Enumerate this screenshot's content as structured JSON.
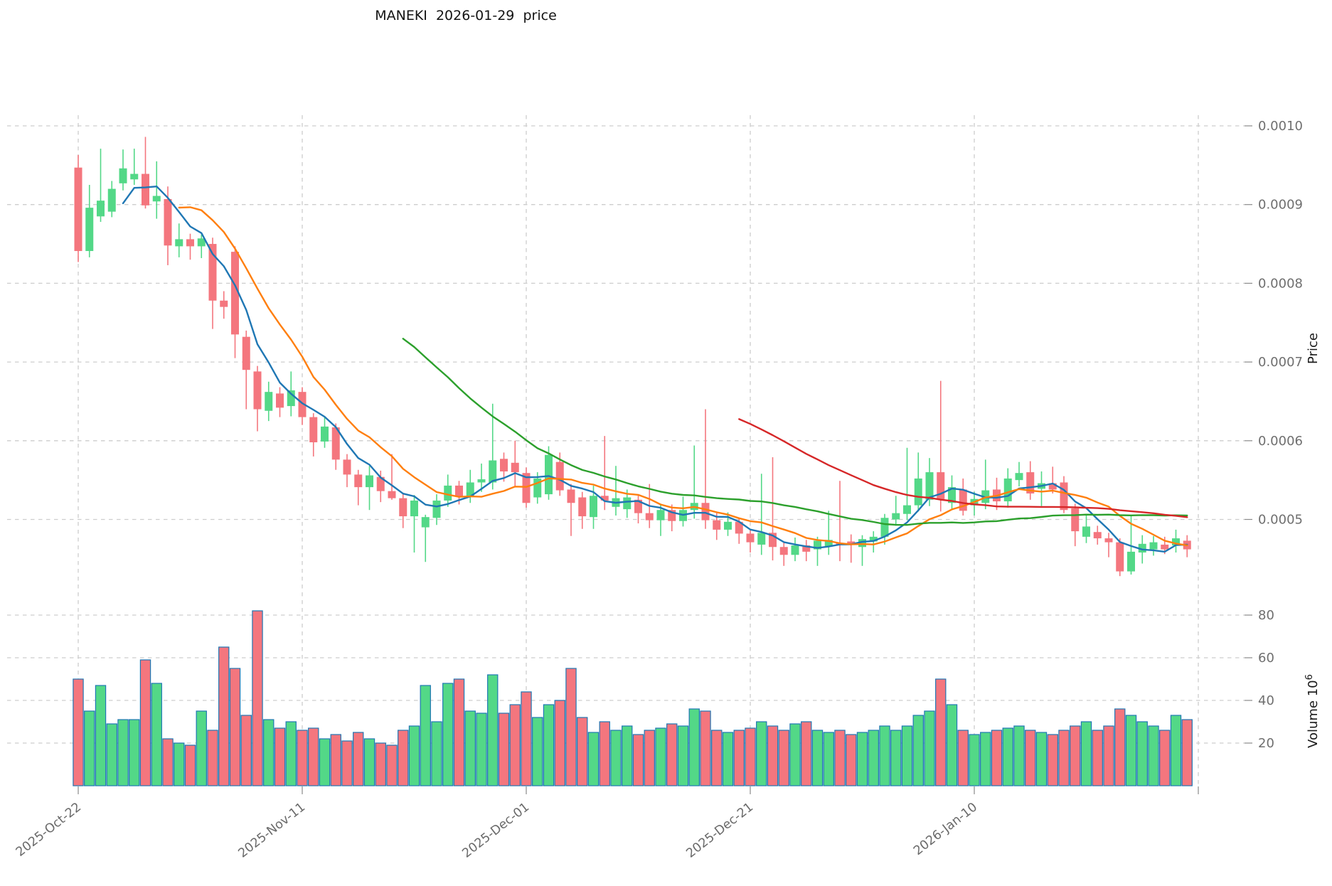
{
  "chart_data": {
    "type": "candlestick",
    "title": "MANEKI  2026-01-29  price",
    "ylabel": "Price",
    "volume_label": "Volume",
    "volume_unit_base": "10",
    "volume_unit_exp": "6",
    "colors": {
      "up": "#53d887",
      "down": "#f4767e",
      "volume_edge": "#1f77b4",
      "ma5": "#1f77b4",
      "ma10": "#ff7f0e",
      "ma30": "#2ca02c",
      "ma60": "#d62728",
      "grid": "#cdcdcd",
      "tick_text": "#6f6f6f"
    },
    "mav_windows": [
      5,
      10,
      30,
      60
    ],
    "price_ticks": [
      {
        "value": 0.0005,
        "label": "0.0005"
      },
      {
        "value": 0.0006,
        "label": "0.0006"
      },
      {
        "value": 0.0007,
        "label": "0.0007"
      },
      {
        "value": 0.0008,
        "label": "0.0008"
      },
      {
        "value": 0.0009,
        "label": "0.0009"
      },
      {
        "value": 0.001,
        "label": "0.0010"
      }
    ],
    "volume_ticks": [
      {
        "value": 20,
        "label": "20"
      },
      {
        "value": 40,
        "label": "40"
      },
      {
        "value": 60,
        "label": "60"
      },
      {
        "value": 80,
        "label": "80"
      }
    ],
    "x_ticks": [
      {
        "index": 0,
        "label": "2025-Oct-22"
      },
      {
        "index": 20,
        "label": "2025-Nov-11"
      },
      {
        "index": 40,
        "label": "2025-Dec-01"
      },
      {
        "index": 60,
        "label": "2025-Dec-21"
      },
      {
        "index": 80,
        "label": "2026-Jan-10"
      },
      {
        "index": 100,
        "label": ""
      }
    ],
    "layout": {
      "price_ylim": [
        0.000415,
        0.00102
      ],
      "volume_ylim": [
        0,
        90
      ],
      "grid": "dashed",
      "legend": "none",
      "y_axis_side": "right"
    },
    "candles": [
      {
        "o": 0.000947,
        "h": 0.000963,
        "l": 0.000827,
        "c": 0.000841,
        "v": 50
      },
      {
        "o": 0.000841,
        "h": 0.000925,
        "l": 0.000833,
        "c": 0.000896,
        "v": 35
      },
      {
        "o": 0.000885,
        "h": 0.000971,
        "l": 0.000878,
        "c": 0.000905,
        "v": 47
      },
      {
        "o": 0.000891,
        "h": 0.00093,
        "l": 0.000884,
        "c": 0.00092,
        "v": 29
      },
      {
        "o": 0.000927,
        "h": 0.00097,
        "l": 0.000918,
        "c": 0.000946,
        "v": 31
      },
      {
        "o": 0.000932,
        "h": 0.000971,
        "l": 0.000925,
        "c": 0.000939,
        "v": 31
      },
      {
        "o": 0.000939,
        "h": 0.000986,
        "l": 0.000895,
        "c": 0.000899,
        "v": 59
      },
      {
        "o": 0.000904,
        "h": 0.000955,
        "l": 0.000882,
        "c": 0.000911,
        "v": 48
      },
      {
        "o": 0.000907,
        "h": 0.000923,
        "l": 0.000823,
        "c": 0.000848,
        "v": 22
      },
      {
        "o": 0.000847,
        "h": 0.000876,
        "l": 0.000833,
        "c": 0.000856,
        "v": 20
      },
      {
        "o": 0.000856,
        "h": 0.000863,
        "l": 0.00083,
        "c": 0.000847,
        "v": 19
      },
      {
        "o": 0.000847,
        "h": 0.000862,
        "l": 0.000832,
        "c": 0.000857,
        "v": 35
      },
      {
        "o": 0.00085,
        "h": 0.000858,
        "l": 0.000742,
        "c": 0.000778,
        "v": 26
      },
      {
        "o": 0.000778,
        "h": 0.00079,
        "l": 0.000755,
        "c": 0.00077,
        "v": 65
      },
      {
        "o": 0.00084,
        "h": 0.000847,
        "l": 0.000705,
        "c": 0.000735,
        "v": 55
      },
      {
        "o": 0.000732,
        "h": 0.00074,
        "l": 0.00064,
        "c": 0.00069,
        "v": 33
      },
      {
        "o": 0.000688,
        "h": 0.000695,
        "l": 0.000612,
        "c": 0.00064,
        "v": 82
      },
      {
        "o": 0.000638,
        "h": 0.000675,
        "l": 0.000625,
        "c": 0.000662,
        "v": 31
      },
      {
        "o": 0.00066,
        "h": 0.000668,
        "l": 0.00063,
        "c": 0.000642,
        "v": 27
      },
      {
        "o": 0.000644,
        "h": 0.000688,
        "l": 0.000631,
        "c": 0.000664,
        "v": 30
      },
      {
        "o": 0.000662,
        "h": 0.000668,
        "l": 0.00062,
        "c": 0.00063,
        "v": 26
      },
      {
        "o": 0.00063,
        "h": 0.000635,
        "l": 0.00058,
        "c": 0.000598,
        "v": 27
      },
      {
        "o": 0.000599,
        "h": 0.000631,
        "l": 0.000591,
        "c": 0.000618,
        "v": 22
      },
      {
        "o": 0.000617,
        "h": 0.000622,
        "l": 0.000563,
        "c": 0.000576,
        "v": 24
      },
      {
        "o": 0.000576,
        "h": 0.000583,
        "l": 0.000541,
        "c": 0.000557,
        "v": 21
      },
      {
        "o": 0.000557,
        "h": 0.000563,
        "l": 0.000518,
        "c": 0.000541,
        "v": 25
      },
      {
        "o": 0.000541,
        "h": 0.000568,
        "l": 0.000512,
        "c": 0.000556,
        "v": 22
      },
      {
        "o": 0.000554,
        "h": 0.000562,
        "l": 0.000522,
        "c": 0.000536,
        "v": 20
      },
      {
        "o": 0.000536,
        "h": 0.000583,
        "l": 0.000525,
        "c": 0.000527,
        "v": 19
      },
      {
        "o": 0.000527,
        "h": 0.000533,
        "l": 0.000489,
        "c": 0.000504,
        "v": 26
      },
      {
        "o": 0.000504,
        "h": 0.000531,
        "l": 0.000458,
        "c": 0.000524,
        "v": 28
      },
      {
        "o": 0.00049,
        "h": 0.000506,
        "l": 0.000446,
        "c": 0.000503,
        "v": 47
      },
      {
        "o": 0.000502,
        "h": 0.000532,
        "l": 0.000493,
        "c": 0.000524,
        "v": 30
      },
      {
        "o": 0.000524,
        "h": 0.000557,
        "l": 0.000516,
        "c": 0.000543,
        "v": 48
      },
      {
        "o": 0.000543,
        "h": 0.000549,
        "l": 0.000519,
        "c": 0.000529,
        "v": 50
      },
      {
        "o": 0.000529,
        "h": 0.000563,
        "l": 0.000521,
        "c": 0.000547,
        "v": 35
      },
      {
        "o": 0.000547,
        "h": 0.000571,
        "l": 0.000535,
        "c": 0.000551,
        "v": 34
      },
      {
        "o": 0.000547,
        "h": 0.000647,
        "l": 0.000538,
        "c": 0.000575,
        "v": 52
      },
      {
        "o": 0.000577,
        "h": 0.000585,
        "l": 0.000548,
        "c": 0.000561,
        "v": 34
      },
      {
        "o": 0.000572,
        "h": 0.0006,
        "l": 0.000541,
        "c": 0.00056,
        "v": 38
      },
      {
        "o": 0.000559,
        "h": 0.000566,
        "l": 0.000515,
        "c": 0.000521,
        "v": 44
      },
      {
        "o": 0.000528,
        "h": 0.00056,
        "l": 0.00052,
        "c": 0.000552,
        "v": 32
      },
      {
        "o": 0.000532,
        "h": 0.000593,
        "l": 0.000525,
        "c": 0.000582,
        "v": 38
      },
      {
        "o": 0.000573,
        "h": 0.000585,
        "l": 0.00053,
        "c": 0.000537,
        "v": 40
      },
      {
        "o": 0.000538,
        "h": 0.000545,
        "l": 0.000479,
        "c": 0.000521,
        "v": 55
      },
      {
        "o": 0.000528,
        "h": 0.000535,
        "l": 0.000488,
        "c": 0.000504,
        "v": 32
      },
      {
        "o": 0.000503,
        "h": 0.000543,
        "l": 0.000488,
        "c": 0.00053,
        "v": 25
      },
      {
        "o": 0.00053,
        "h": 0.000606,
        "l": 0.000512,
        "c": 0.000524,
        "v": 30
      },
      {
        "o": 0.000516,
        "h": 0.000568,
        "l": 0.000505,
        "c": 0.000527,
        "v": 26
      },
      {
        "o": 0.000513,
        "h": 0.000538,
        "l": 0.000502,
        "c": 0.000528,
        "v": 28
      },
      {
        "o": 0.000525,
        "h": 0.000531,
        "l": 0.000495,
        "c": 0.000508,
        "v": 24
      },
      {
        "o": 0.000508,
        "h": 0.000545,
        "l": 0.000489,
        "c": 0.000499,
        "v": 26
      },
      {
        "o": 0.000499,
        "h": 0.00052,
        "l": 0.000479,
        "c": 0.000512,
        "v": 27
      },
      {
        "o": 0.000512,
        "h": 0.000519,
        "l": 0.000485,
        "c": 0.000498,
        "v": 29
      },
      {
        "o": 0.000498,
        "h": 0.000529,
        "l": 0.000491,
        "c": 0.000512,
        "v": 28
      },
      {
        "o": 0.000512,
        "h": 0.000594,
        "l": 0.000501,
        "c": 0.000521,
        "v": 36
      },
      {
        "o": 0.000521,
        "h": 0.00064,
        "l": 0.000488,
        "c": 0.000499,
        "v": 35
      },
      {
        "o": 0.000499,
        "h": 0.000508,
        "l": 0.000474,
        "c": 0.000487,
        "v": 26
      },
      {
        "o": 0.000487,
        "h": 0.000509,
        "l": 0.000479,
        "c": 0.000497,
        "v": 25
      },
      {
        "o": 0.000497,
        "h": 0.000502,
        "l": 0.000469,
        "c": 0.000482,
        "v": 26
      },
      {
        "o": 0.000482,
        "h": 0.000488,
        "l": 0.000458,
        "c": 0.000471,
        "v": 27
      },
      {
        "o": 0.000468,
        "h": 0.000558,
        "l": 0.000455,
        "c": 0.000483,
        "v": 30
      },
      {
        "o": 0.000483,
        "h": 0.000579,
        "l": 0.000448,
        "c": 0.000465,
        "v": 28
      },
      {
        "o": 0.000465,
        "h": 0.000472,
        "l": 0.000441,
        "c": 0.000455,
        "v": 26
      },
      {
        "o": 0.000455,
        "h": 0.000477,
        "l": 0.000447,
        "c": 0.000467,
        "v": 29
      },
      {
        "o": 0.000467,
        "h": 0.000474,
        "l": 0.000447,
        "c": 0.000459,
        "v": 30
      },
      {
        "o": 0.000462,
        "h": 0.000478,
        "l": 0.000441,
        "c": 0.000473,
        "v": 26
      },
      {
        "o": 0.000466,
        "h": 0.000511,
        "l": 0.000455,
        "c": 0.000474,
        "v": 25
      },
      {
        "o": 0.00047,
        "h": 0.000549,
        "l": 0.000447,
        "c": 0.000468,
        "v": 26
      },
      {
        "o": 0.000472,
        "h": 0.000481,
        "l": 0.000445,
        "c": 0.000468,
        "v": 24
      },
      {
        "o": 0.000465,
        "h": 0.00048,
        "l": 0.000441,
        "c": 0.000475,
        "v": 25
      },
      {
        "o": 0.000472,
        "h": 0.000485,
        "l": 0.000458,
        "c": 0.000478,
        "v": 26
      },
      {
        "o": 0.000478,
        "h": 0.000507,
        "l": 0.000468,
        "c": 0.000502,
        "v": 28
      },
      {
        "o": 0.0005,
        "h": 0.00053,
        "l": 0.000492,
        "c": 0.000508,
        "v": 26
      },
      {
        "o": 0.000507,
        "h": 0.000591,
        "l": 0.000499,
        "c": 0.000518,
        "v": 28
      },
      {
        "o": 0.000518,
        "h": 0.000585,
        "l": 0.00051,
        "c": 0.000552,
        "v": 33
      },
      {
        "o": 0.000525,
        "h": 0.000578,
        "l": 0.000517,
        "c": 0.00056,
        "v": 35
      },
      {
        "o": 0.00056,
        "h": 0.000676,
        "l": 0.00051,
        "c": 0.000525,
        "v": 50
      },
      {
        "o": 0.000521,
        "h": 0.000556,
        "l": 0.000512,
        "c": 0.000541,
        "v": 38
      },
      {
        "o": 0.000538,
        "h": 0.000552,
        "l": 0.000505,
        "c": 0.000511,
        "v": 26
      },
      {
        "o": 0.000518,
        "h": 0.000535,
        "l": 0.000505,
        "c": 0.000526,
        "v": 24
      },
      {
        "o": 0.000521,
        "h": 0.000576,
        "l": 0.000513,
        "c": 0.000537,
        "v": 25
      },
      {
        "o": 0.000538,
        "h": 0.000553,
        "l": 0.000512,
        "c": 0.000523,
        "v": 26
      },
      {
        "o": 0.000523,
        "h": 0.000565,
        "l": 0.000515,
        "c": 0.000552,
        "v": 27
      },
      {
        "o": 0.00055,
        "h": 0.000573,
        "l": 0.000542,
        "c": 0.000559,
        "v": 28
      },
      {
        "o": 0.00056,
        "h": 0.000574,
        "l": 0.000525,
        "c": 0.000533,
        "v": 26
      },
      {
        "o": 0.000539,
        "h": 0.000561,
        "l": 0.000517,
        "c": 0.000546,
        "v": 25
      },
      {
        "o": 0.000546,
        "h": 0.000567,
        "l": 0.000533,
        "c": 0.000538,
        "v": 24
      },
      {
        "o": 0.000547,
        "h": 0.000555,
        "l": 0.000508,
        "c": 0.000512,
        "v": 26
      },
      {
        "o": 0.000514,
        "h": 0.00052,
        "l": 0.000466,
        "c": 0.000485,
        "v": 28
      },
      {
        "o": 0.000478,
        "h": 0.000505,
        "l": 0.00047,
        "c": 0.000491,
        "v": 30
      },
      {
        "o": 0.000484,
        "h": 0.000492,
        "l": 0.000468,
        "c": 0.000476,
        "v": 26
      },
      {
        "o": 0.000476,
        "h": 0.000483,
        "l": 0.000452,
        "c": 0.000471,
        "v": 28
      },
      {
        "o": 0.000471,
        "h": 0.000476,
        "l": 0.000428,
        "c": 0.000434,
        "v": 36
      },
      {
        "o": 0.000434,
        "h": 0.000505,
        "l": 0.00043,
        "c": 0.000459,
        "v": 33
      },
      {
        "o": 0.000458,
        "h": 0.00048,
        "l": 0.000444,
        "c": 0.000469,
        "v": 30
      },
      {
        "o": 0.000462,
        "h": 0.000479,
        "l": 0.000454,
        "c": 0.000471,
        "v": 28
      },
      {
        "o": 0.000468,
        "h": 0.000478,
        "l": 0.000456,
        "c": 0.000462,
        "v": 26
      },
      {
        "o": 0.000467,
        "h": 0.000487,
        "l": 0.000458,
        "c": 0.000476,
        "v": 33
      },
      {
        "o": 0.000473,
        "h": 0.00048,
        "l": 0.000452,
        "c": 0.000462,
        "v": 31
      }
    ]
  }
}
